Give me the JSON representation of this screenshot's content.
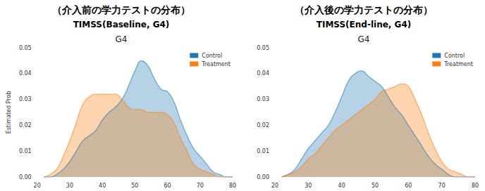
{
  "chart_data": [
    {
      "type": "area",
      "annotations": [
        "（介入前の学力テストの分布）"
      ],
      "subtitle": "TIMSS(Baseline, G4)",
      "title": "G4",
      "y_label": "Estimated Prob",
      "legend": "upper right",
      "grid": false,
      "x": [
        22,
        24,
        26,
        28,
        30,
        32,
        34,
        36,
        38,
        40,
        42,
        44,
        46,
        48,
        50,
        52,
        54,
        56,
        58,
        60,
        62,
        64,
        66,
        68,
        70,
        72,
        74,
        76,
        78,
        80
      ],
      "series": [
        {
          "name": "Control",
          "color": "#1f77b4",
          "values": [
            0,
            0,
            0.001,
            0.003,
            0.006,
            0.01,
            0.014,
            0.016,
            0.018,
            0.022,
            0.025,
            0.027,
            0.03,
            0.035,
            0.041,
            0.045,
            0.043,
            0.038,
            0.034,
            0.033,
            0.029,
            0.022,
            0.016,
            0.011,
            0.008,
            0.005,
            0.002,
            0.001,
            0,
            0
          ]
        },
        {
          "name": "Treatment",
          "color": "#ff7f0e",
          "values": [
            0,
            0.001,
            0.003,
            0.008,
            0.014,
            0.021,
            0.028,
            0.031,
            0.032,
            0.032,
            0.032,
            0.032,
            0.03,
            0.027,
            0.026,
            0.026,
            0.025,
            0.025,
            0.025,
            0.024,
            0.021,
            0.015,
            0.01,
            0.005,
            0.003,
            0.002,
            0.001,
            0,
            0,
            0
          ]
        }
      ],
      "xlim": [
        20,
        80
      ],
      "xticks": [
        20,
        30,
        40,
        50,
        60,
        70,
        80
      ],
      "ylim": [
        0,
        0.05
      ],
      "yticks": [
        {
          "value": 0,
          "label": "0.00"
        },
        {
          "value": 0.01,
          "label": "0.01"
        },
        {
          "value": 0.02,
          "label": "0.02"
        },
        {
          "value": 0.03,
          "label": "0.03"
        },
        {
          "value": 0.04,
          "label": "0.04"
        },
        {
          "value": 0.05,
          "label": "0.05"
        }
      ]
    },
    {
      "type": "area",
      "annotations": [
        "（介入後の学力テストの分布）"
      ],
      "subtitle": "TIMSS(End-line, G4)",
      "title": "G4",
      "legend": "upper right",
      "grid": false,
      "x": [
        22,
        24,
        26,
        28,
        30,
        32,
        34,
        36,
        38,
        40,
        42,
        44,
        46,
        48,
        50,
        52,
        54,
        56,
        58,
        60,
        62,
        64,
        66,
        68,
        70,
        72,
        74,
        76,
        78,
        80
      ],
      "series": [
        {
          "name": "Control",
          "color": "#1f77b4",
          "values": [
            0,
            0.001,
            0.003,
            0.007,
            0.011,
            0.014,
            0.017,
            0.02,
            0.025,
            0.031,
            0.037,
            0.04,
            0.041,
            0.039,
            0.037,
            0.035,
            0.031,
            0.027,
            0.024,
            0.02,
            0.016,
            0.012,
            0.008,
            0.005,
            0.003,
            0.001,
            0,
            0,
            0,
            0
          ]
        },
        {
          "name": "Treatment",
          "color": "#ff7f0e",
          "values": [
            0,
            0.001,
            0.002,
            0.004,
            0.007,
            0.009,
            0.012,
            0.015,
            0.018,
            0.02,
            0.022,
            0.024,
            0.026,
            0.028,
            0.03,
            0.033,
            0.034,
            0.035,
            0.036,
            0.035,
            0.03,
            0.024,
            0.017,
            0.011,
            0.006,
            0.003,
            0.002,
            0.001,
            0,
            0
          ]
        }
      ],
      "xlim": [
        20,
        80
      ],
      "xticks": [
        20,
        30,
        40,
        50,
        60,
        70,
        80
      ],
      "ylim": [
        0,
        0.05
      ],
      "yticks": [
        {
          "value": 0,
          "label": "0.00"
        },
        {
          "value": 0.01,
          "label": "0.01"
        },
        {
          "value": 0.02,
          "label": "0.02"
        },
        {
          "value": 0.03,
          "label": "0.03"
        },
        {
          "value": 0.04,
          "label": "0.04"
        },
        {
          "value": 0.05,
          "label": "0.05"
        }
      ]
    }
  ]
}
